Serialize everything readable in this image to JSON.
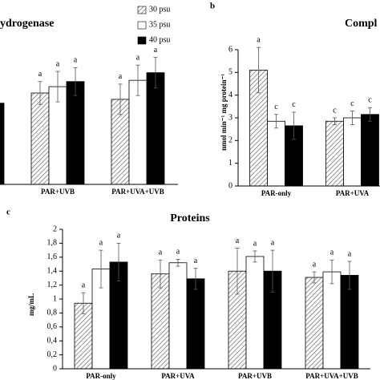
{
  "chart_data": [
    {
      "type": "bar",
      "title": "ydrogenase",
      "categories": [
        null,
        "PAR+UVB",
        "PAR+UVA+UVB"
      ],
      "ylim": [
        0,
        6
      ],
      "series": [
        {
          "name": "30 psu",
          "color": "#777777",
          "hatch": true,
          "values": [
            null,
            3.6,
            3.35
          ],
          "errors": [
            null,
            0.45,
            0.6
          ],
          "letters": [
            null,
            "a",
            "a"
          ]
        },
        {
          "name": "35 psu",
          "color": "#ffffff",
          "values": [
            null,
            3.85,
            4.1
          ],
          "errors": [
            null,
            0.6,
            0.6
          ],
          "letters": [
            null,
            "a",
            "a"
          ]
        },
        {
          "name": "40 psu",
          "color": "#000000",
          "values": [
            3.2,
            4.05,
            4.4
          ],
          "errors": [
            null,
            0.55,
            0.6
          ],
          "letters": [
            null,
            "a",
            "a"
          ]
        }
      ]
    },
    {
      "type": "bar",
      "panel_label": "b",
      "title": "Compl",
      "y_label": "nmol min⁻¹ mg protein⁻¹",
      "categories": [
        "PAR-only",
        "PAR+UVA"
      ],
      "ylim": [
        0,
        6
      ],
      "yticks": [
        0,
        1,
        2,
        3,
        4,
        5,
        6
      ],
      "series": [
        {
          "color": "#777777",
          "hatch": true,
          "values": [
            5.1,
            2.85
          ],
          "errors": [
            1.0,
            0.15
          ],
          "letters": [
            "a",
            "c"
          ]
        },
        {
          "color": "#ffffff",
          "values": [
            2.85,
            3.0
          ],
          "errors": [
            0.3,
            0.3
          ],
          "letters": [
            "c",
            "c"
          ]
        },
        {
          "color": "#000000",
          "values": [
            2.65,
            3.15
          ],
          "errors": [
            0.6,
            0.3
          ],
          "letters": [
            "c",
            "c"
          ]
        }
      ]
    },
    {
      "type": "bar",
      "panel_label": "c",
      "title": "Proteins",
      "y_label": "mg/mL",
      "categories": [
        "PAR-only",
        "PAR+UVA",
        "PAR+UVB",
        "PAR+UVA+UVB"
      ],
      "ylim": [
        0,
        2
      ],
      "yticks": [
        0,
        {
          "value": 0.2,
          "label": "0,2"
        },
        {
          "value": 0.4,
          "label": "0,4"
        },
        {
          "value": 0.6,
          "label": "0,6"
        },
        {
          "value": 0.8,
          "label": "0,8"
        },
        1,
        {
          "value": 1.2,
          "label": "1,2"
        },
        {
          "value": 1.4,
          "label": "1,4"
        },
        {
          "value": 1.6,
          "label": "1,6"
        },
        {
          "value": 1.8,
          "label": "1,8"
        },
        2
      ],
      "series": [
        {
          "color": "#777777",
          "hatch": true,
          "values": [
            0.94,
            1.36,
            1.4,
            1.31
          ],
          "errors": [
            0.15,
            0.2,
            0.33,
            0.08
          ],
          "letters": [
            "a",
            "a",
            "a",
            "a"
          ]
        },
        {
          "color": "#ffffff",
          "values": [
            1.43,
            1.52,
            1.61,
            1.39
          ],
          "errors": [
            0.27,
            0.05,
            0.08,
            0.17
          ],
          "letters": [
            "a",
            "a",
            "a",
            "a"
          ]
        },
        {
          "color": "#000000",
          "values": [
            1.53,
            1.29,
            1.4,
            1.34
          ],
          "errors": [
            0.27,
            0.15,
            0.3,
            0.2
          ],
          "letters": [
            "a",
            "a",
            "a",
            "a"
          ]
        }
      ]
    }
  ]
}
